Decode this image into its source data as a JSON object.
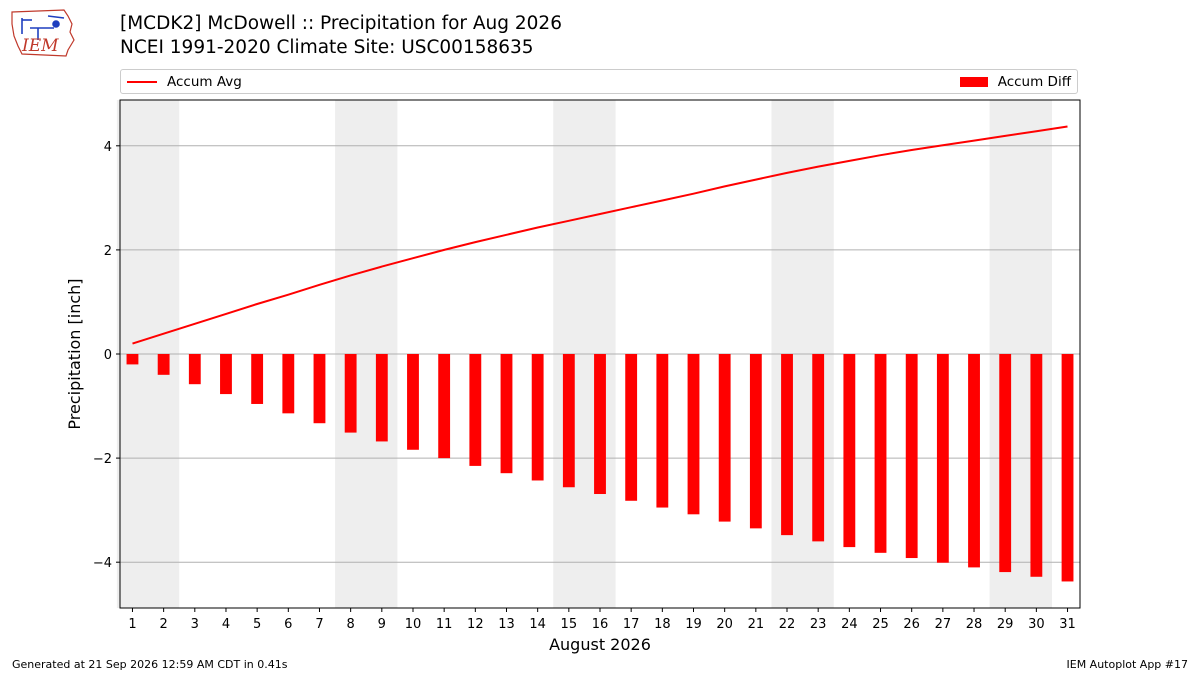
{
  "header": {
    "title_line1": "[MCDK2] McDowell :: Precipitation for Aug 2026",
    "title_line2": "NCEI 1991-2020 Climate Site: USC00158635"
  },
  "logo": {
    "text": "IEM"
  },
  "footer": {
    "left": "Generated at 21 Sep 2026 12:59 AM CDT in 0.41s",
    "right": "IEM Autoplot App #17"
  },
  "colors": {
    "series": "#ff0000",
    "weekend_shade": "#eeeeee",
    "grid": "#b0b0b0"
  },
  "chart_data": {
    "type": "bar",
    "xlabel": "August 2026",
    "ylabel": "Precipitation [inch]",
    "ylim": [
      -4.88,
      4.88
    ],
    "yticks": [
      4,
      2,
      0,
      -2,
      -4
    ],
    "ytick_labels": [
      "4",
      "2",
      "0",
      "−2",
      "−4"
    ],
    "grid": "horizontal",
    "legend_placement": "top (above plot)",
    "categories": [
      "1",
      "2",
      "3",
      "4",
      "5",
      "6",
      "7",
      "8",
      "9",
      "10",
      "11",
      "12",
      "13",
      "14",
      "15",
      "16",
      "17",
      "18",
      "19",
      "20",
      "21",
      "22",
      "23",
      "24",
      "25",
      "26",
      "27",
      "28",
      "29",
      "30",
      "31"
    ],
    "weekend_days": [
      [
        1,
        2
      ],
      [
        8,
        9
      ],
      [
        15,
        16
      ],
      [
        22,
        23
      ],
      [
        29,
        30
      ]
    ],
    "series": [
      {
        "name": "Accum Avg",
        "type": "line",
        "values": [
          0.2,
          0.39,
          0.58,
          0.77,
          0.96,
          1.14,
          1.33,
          1.51,
          1.68,
          1.84,
          2.0,
          2.15,
          2.29,
          2.43,
          2.56,
          2.69,
          2.82,
          2.95,
          3.08,
          3.22,
          3.35,
          3.48,
          3.6,
          3.71,
          3.82,
          3.92,
          4.01,
          4.1,
          4.19,
          4.28,
          4.37
        ]
      },
      {
        "name": "Accum Diff",
        "type": "bar",
        "values": [
          -0.2,
          -0.4,
          -0.58,
          -0.77,
          -0.96,
          -1.14,
          -1.33,
          -1.51,
          -1.68,
          -1.84,
          -2.0,
          -2.15,
          -2.29,
          -2.43,
          -2.56,
          -2.69,
          -2.82,
          -2.95,
          -3.08,
          -3.22,
          -3.35,
          -3.48,
          -3.6,
          -3.71,
          -3.82,
          -3.92,
          -4.01,
          -4.1,
          -4.19,
          -4.28,
          -4.37
        ]
      }
    ]
  }
}
